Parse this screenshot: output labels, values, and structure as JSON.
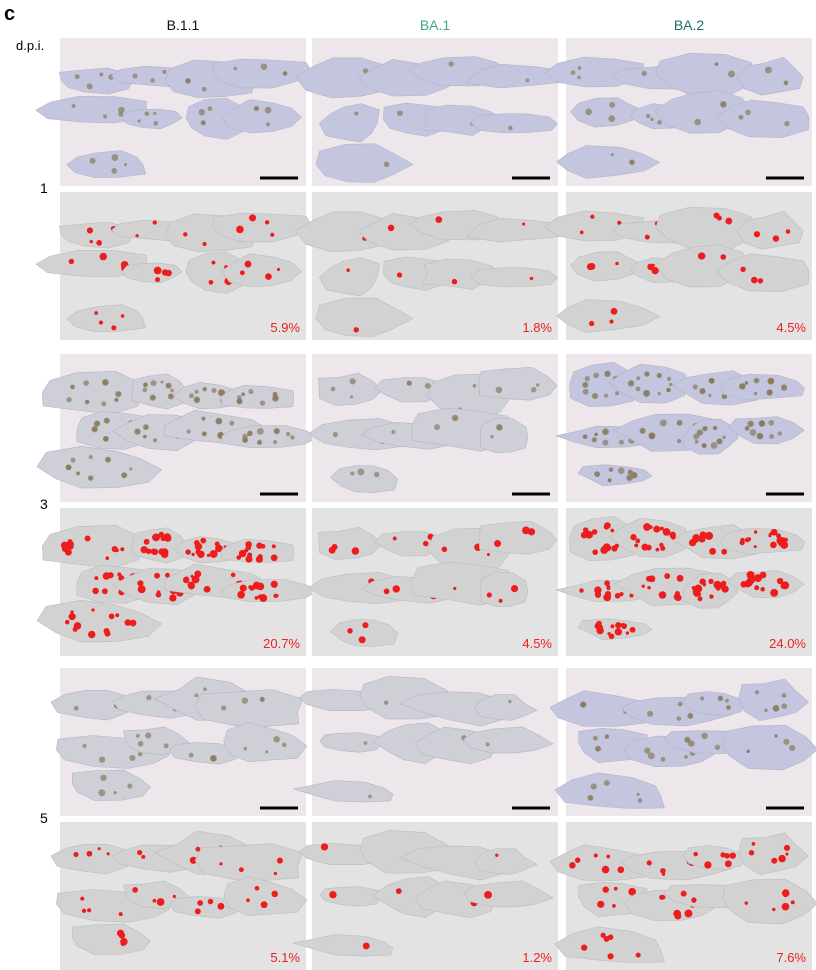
{
  "panel_label": "c",
  "row_axis_label": "d.p.i.",
  "columns": [
    "B.1.1",
    "BA.1",
    "BA.2"
  ],
  "rows": [
    {
      "label": "1",
      "percentages": [
        "5.9%",
        "1.8%",
        "4.5%"
      ]
    },
    {
      "label": "3",
      "percentages": [
        "20.7%",
        "4.5%",
        "24.0%"
      ]
    },
    {
      "label": "5",
      "percentages": [
        "5.1%",
        "1.2%",
        "7.6%"
      ]
    }
  ]
}
